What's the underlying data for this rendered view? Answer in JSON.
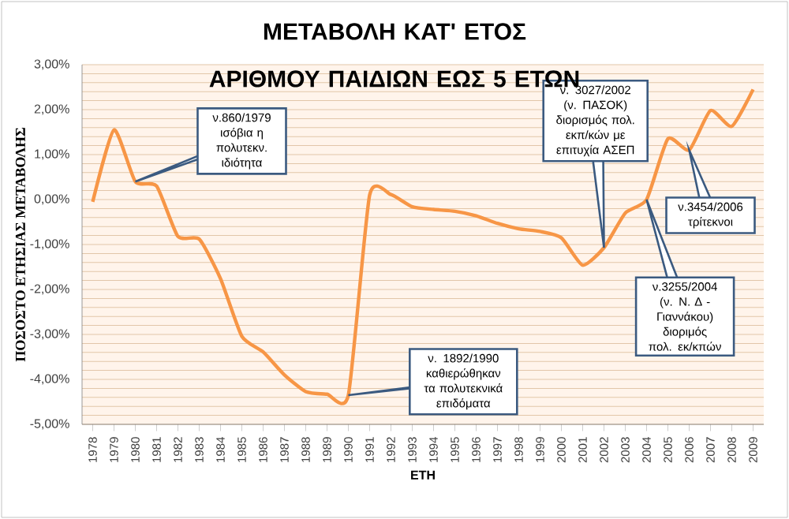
{
  "chart_data": {
    "type": "line",
    "title": "ΜΕΤΑΒΟΛΗ ΚΑΤ' ΕΤΟΣ ΑΡΙΘΜΟΥ ΠΑΙΔΙΩΝ ΕΩΣ 5 ΕΤΩΝ",
    "xlabel": "ΕΤΗ",
    "ylabel": "ΠΟΣΟΣΤΟ ΕΤΗΣΙΑΣ ΜΕΤΑΒΟΛΗΣ",
    "categories": [
      "1978",
      "1979",
      "1980",
      "1981",
      "1982",
      "1983",
      "1984",
      "1985",
      "1986",
      "1987",
      "1988",
      "1989",
      "1990",
      "1991",
      "1992",
      "1993",
      "1994",
      "1995",
      "1996",
      "1997",
      "1998",
      "1999",
      "2000",
      "2001",
      "2002",
      "2003",
      "2004",
      "2005",
      "2006",
      "2007",
      "2008",
      "2009"
    ],
    "series": [
      {
        "color": "#f79646",
        "values": [
          -0.05,
          1.55,
          0.4,
          0.3,
          -0.82,
          -0.88,
          -1.76,
          -3.04,
          -3.39,
          -3.9,
          -4.27,
          -4.33,
          -4.35,
          0.1,
          0.11,
          -0.16,
          -0.22,
          -0.26,
          -0.36,
          -0.53,
          -0.65,
          -0.71,
          -0.85,
          -1.46,
          -1.07,
          -0.3,
          0.0,
          1.35,
          1.1,
          1.98,
          1.63,
          2.45
        ]
      }
    ],
    "ylim": [
      -5,
      3
    ],
    "yticks": [
      {
        "value": -5,
        "label": "-5,00%"
      },
      {
        "value": -4,
        "label": "-4,00%"
      },
      {
        "value": -3,
        "label": "-3,00%"
      },
      {
        "value": -2,
        "label": "-2,00%"
      },
      {
        "value": -1,
        "label": "-1,00%"
      },
      {
        "value": 0,
        "label": "0,00%"
      },
      {
        "value": 1,
        "label": "1,00%"
      },
      {
        "value": 2,
        "label": "2,00%"
      },
      {
        "value": 3,
        "label": "3,00%"
      }
    ],
    "grid": "y",
    "annotations": [
      {
        "text": "ν.860/1979 ισόβια η πολυτεκν. ιδιότητα",
        "x": "1980",
        "y": 0.4
      },
      {
        "text": "ν. 1892/1990 καθιερώθηκαν τα πολυτεκνικά επιδόματα",
        "x": "1990",
        "y": -4.35
      },
      {
        "text": "ν. 3027/2002 (ν. ΠΑΣΟΚ) διορισμός πολ. εκπ/κών με επιτυχία ΑΣΕΠ",
        "x": "2002",
        "y": -1.07
      },
      {
        "text": "ν.3454/2006 τρίτεκνοι",
        "x": "2006",
        "y": 1.1
      },
      {
        "text": "ν.3255/2004 (ν. Ν. Δ - Γιαννάκου) διοριμός πολ. εκ/κπών",
        "x": "2004",
        "y": 0.0
      }
    ]
  }
}
